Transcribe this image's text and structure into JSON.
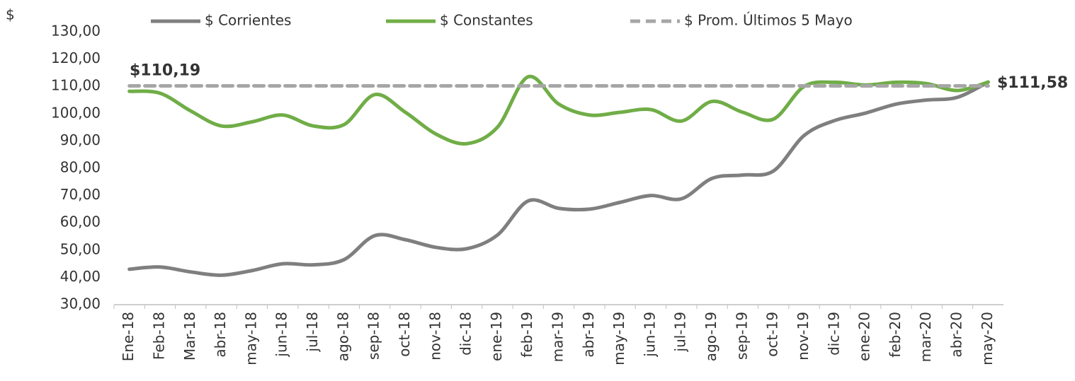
{
  "chart_data": {
    "type": "line",
    "y_axis_label": "$",
    "categories": [
      "Ene-18",
      "Feb-18",
      "Mar-18",
      "abr-18",
      "may-18",
      "jun-18",
      "jul-18",
      "ago-18",
      "sep-18",
      "oct-18",
      "nov-18",
      "dic-18",
      "ene-19",
      "feb-19",
      "mar-19",
      "abr-19",
      "may-19",
      "jun-19",
      "jul-19",
      "ago-19",
      "sep-19",
      "oct-19",
      "nov-19",
      "dic-19",
      "ene-20",
      "feb-20",
      "mar-20",
      "abr-20",
      "may-20"
    ],
    "series": [
      {
        "name": "$ Corrientes",
        "color": "#7f7f7f",
        "values": [
          43,
          43.8,
          42,
          40.8,
          42.5,
          45,
          44.6,
          46.5,
          55.3,
          53.8,
          51,
          50.5,
          55.5,
          68,
          65.3,
          65,
          67.5,
          70,
          68.8,
          76.3,
          77.5,
          79,
          92,
          97.5,
          100.2,
          103.5,
          105,
          106,
          111.58
        ]
      },
      {
        "name": "$ Constantes",
        "color": "#70ad47",
        "values": [
          108.2,
          107.5,
          101,
          95.5,
          97,
          99.5,
          95.5,
          96,
          107,
          100.5,
          92.5,
          89,
          95,
          113.5,
          103.5,
          99.5,
          100.5,
          101.5,
          97.3,
          104.5,
          100.5,
          98,
          110,
          111.5,
          110.5,
          111.5,
          111,
          108.5,
          111.58
        ]
      },
      {
        "name": "$ Prom. Últimos 5 Mayo",
        "color": "#a6a6a6",
        "dashed": true,
        "values": [
          110.19,
          110.19,
          110.19,
          110.19,
          110.19,
          110.19,
          110.19,
          110.19,
          110.19,
          110.19,
          110.19,
          110.19,
          110.19,
          110.19,
          110.19,
          110.19,
          110.19,
          110.19,
          110.19,
          110.19,
          110.19,
          110.19,
          110.19,
          110.19,
          110.19,
          110.19,
          110.19,
          110.19,
          110.19
        ]
      }
    ],
    "annotations": [
      {
        "label": "$110,19",
        "value": 110.19
      },
      {
        "label": "$111,58",
        "value": 111.58
      }
    ],
    "ylim": [
      30,
      130
    ],
    "yticks": [
      {
        "value": 30,
        "label": "30,00"
      },
      {
        "value": 40,
        "label": "40,00"
      },
      {
        "value": 50,
        "label": "50,00"
      },
      {
        "value": 60,
        "label": "60,00"
      },
      {
        "value": 70,
        "label": "70,00"
      },
      {
        "value": 80,
        "label": "80,00"
      },
      {
        "value": 90,
        "label": "90,00"
      },
      {
        "value": 100,
        "label": "100,00"
      },
      {
        "value": 110,
        "label": "110,00"
      },
      {
        "value": 120,
        "label": "120,00"
      },
      {
        "value": 130,
        "label": "130,00"
      }
    ],
    "grid": false
  }
}
